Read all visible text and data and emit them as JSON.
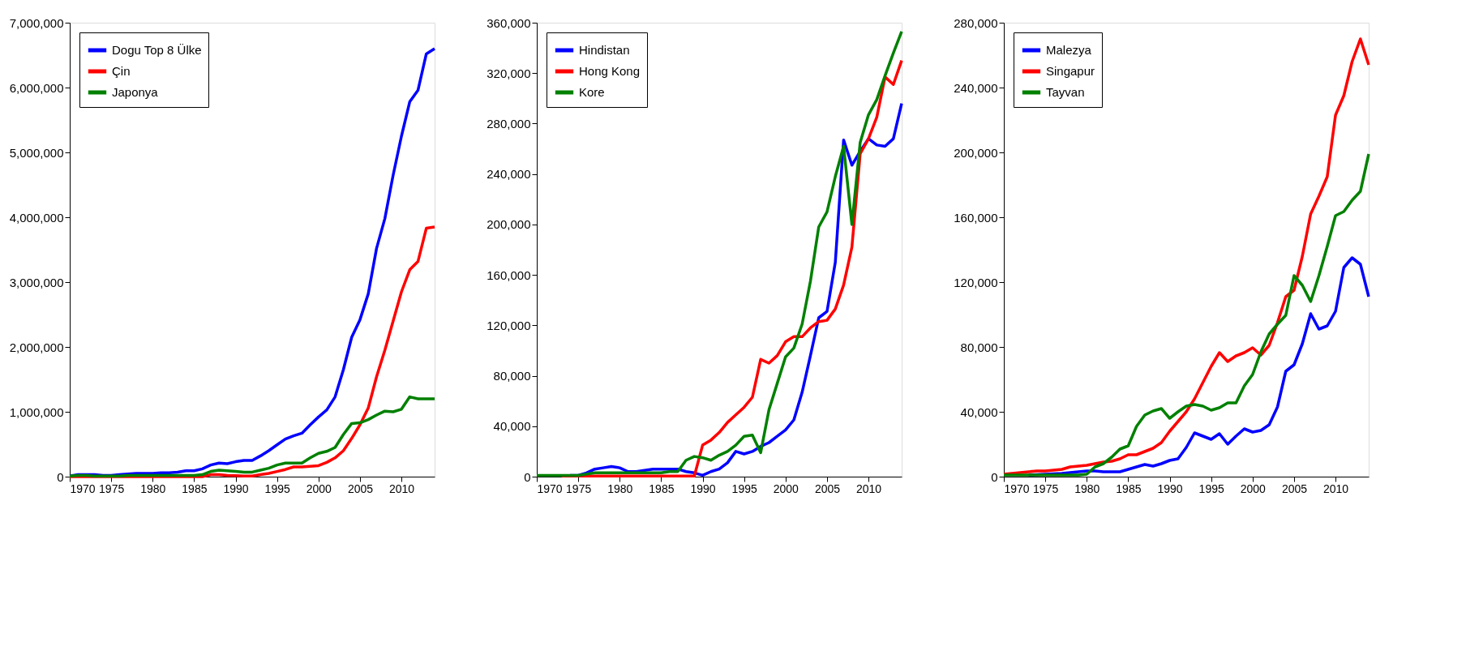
{
  "chart_data": [
    {
      "type": "line",
      "x": [
        1970,
        1971,
        1972,
        1973,
        1974,
        1975,
        1976,
        1977,
        1978,
        1979,
        1980,
        1981,
        1982,
        1983,
        1984,
        1985,
        1986,
        1987,
        1988,
        1989,
        1990,
        1991,
        1992,
        1993,
        1994,
        1995,
        1996,
        1997,
        1998,
        1999,
        2000,
        2001,
        2002,
        2003,
        2004,
        2005,
        2006,
        2007,
        2008,
        2009,
        2010,
        2011,
        2012,
        2013,
        2014
      ],
      "xlim": [
        1970,
        2014
      ],
      "xticks": [
        1970,
        1975,
        1980,
        1985,
        1990,
        1995,
        2000,
        2005,
        2010
      ],
      "ylim": [
        0,
        7000000
      ],
      "yticks": [
        0,
        {
          "value": 1000000,
          "label": "1,000,000"
        },
        {
          "value": 2000000,
          "label": "2,000,000"
        },
        {
          "value": 3000000,
          "label": "3,000,000"
        },
        {
          "value": 4000000,
          "label": "4,000,000"
        },
        {
          "value": 5000000,
          "label": "5,000,000"
        },
        {
          "value": 6000000,
          "label": "6,000,000"
        },
        {
          "value": 7000000,
          "label": "7,000,000"
        }
      ],
      "grid": false,
      "legend": "top left",
      "marker": "none",
      "line_style": "solid",
      "series": [
        {
          "name": "Dogu Top 8 Ülke",
          "color": "#0000ff",
          "values": [
            10000,
            30000,
            30000,
            30000,
            20000,
            20000,
            30000,
            40000,
            50000,
            50000,
            50000,
            60000,
            60000,
            70000,
            90000,
            90000,
            120000,
            180000,
            210000,
            200000,
            230000,
            250000,
            250000,
            320000,
            400000,
            490000,
            580000,
            630000,
            670000,
            800000,
            920000,
            1030000,
            1230000,
            1650000,
            2150000,
            2420000,
            2820000,
            3520000,
            3980000,
            4650000,
            5250000,
            5780000,
            5960000,
            6520000,
            6600000
          ]
        },
        {
          "name": "Çin",
          "color": "#ff0000",
          "values": [
            0,
            0,
            0,
            0,
            0,
            0,
            0,
            0,
            0,
            0,
            0,
            0,
            0,
            0,
            0,
            0,
            0,
            30000,
            30000,
            20000,
            15000,
            10000,
            10000,
            30000,
            50000,
            80000,
            110000,
            150000,
            150000,
            160000,
            170000,
            220000,
            290000,
            400000,
            590000,
            800000,
            1060000,
            1540000,
            1950000,
            2400000,
            2850000,
            3190000,
            3320000,
            3830000,
            3850000
          ]
        },
        {
          "name": "Japonya",
          "color": "#008000",
          "values": [
            10000,
            20000,
            20000,
            10000,
            10000,
            10000,
            10000,
            20000,
            20000,
            20000,
            20000,
            20000,
            20000,
            20000,
            20000,
            20000,
            30000,
            80000,
            100000,
            90000,
            80000,
            70000,
            70000,
            100000,
            130000,
            180000,
            210000,
            210000,
            210000,
            290000,
            360000,
            390000,
            450000,
            650000,
            820000,
            830000,
            880000,
            950000,
            1010000,
            1000000,
            1040000,
            1230000,
            1200000,
            1200000,
            1200000
          ]
        }
      ]
    },
    {
      "type": "line",
      "x": [
        1970,
        1971,
        1972,
        1973,
        1974,
        1975,
        1976,
        1977,
        1978,
        1979,
        1980,
        1981,
        1982,
        1983,
        1984,
        1985,
        1986,
        1987,
        1988,
        1989,
        1990,
        1991,
        1992,
        1993,
        1994,
        1995,
        1996,
        1997,
        1998,
        1999,
        2000,
        2001,
        2002,
        2003,
        2004,
        2005,
        2006,
        2007,
        2008,
        2009,
        2010,
        2011,
        2012,
        2013,
        2014
      ],
      "xlim": [
        1970,
        2014
      ],
      "xticks": [
        1970,
        1975,
        1980,
        1985,
        1990,
        1995,
        2000,
        2005,
        2010
      ],
      "ylim": [
        0,
        360000
      ],
      "yticks": [
        0,
        {
          "value": 40000,
          "label": "40,000"
        },
        {
          "value": 80000,
          "label": "80,000"
        },
        {
          "value": 120000,
          "label": "120,000"
        },
        {
          "value": 160000,
          "label": "160,000"
        },
        {
          "value": 200000,
          "label": "200,000"
        },
        {
          "value": 240000,
          "label": "240,000"
        },
        {
          "value": 280000,
          "label": "280,000"
        },
        {
          "value": 320000,
          "label": "320,000"
        },
        {
          "value": 360000,
          "label": "360,000"
        }
      ],
      "grid": false,
      "legend": "top left",
      "marker": "none",
      "line_style": "solid",
      "series": [
        {
          "name": "Hindistan",
          "color": "#0000ff",
          "values": [
            null,
            null,
            null,
            null,
            1000,
            1000,
            3000,
            6000,
            7000,
            8000,
            7000,
            4000,
            4000,
            5000,
            6000,
            6000,
            6000,
            6000,
            4000,
            3000,
            1000,
            4000,
            6000,
            11000,
            20000,
            18000,
            20000,
            24000,
            27000,
            32000,
            37000,
            45000,
            67000,
            96000,
            126000,
            131000,
            170000,
            267000,
            247000,
            258000,
            268000,
            263000,
            262000,
            268000,
            296000
          ]
        },
        {
          "name": "Hong Kong",
          "color": "#ff0000",
          "values": [
            null,
            null,
            null,
            500,
            500,
            500,
            500,
            500,
            500,
            500,
            500,
            500,
            500,
            500,
            500,
            500,
            500,
            500,
            500,
            500,
            25000,
            29000,
            35000,
            43000,
            49000,
            55000,
            63000,
            93000,
            90000,
            96000,
            107000,
            111000,
            111000,
            118000,
            123000,
            124000,
            133000,
            152000,
            182000,
            256000,
            268000,
            285000,
            317000,
            311000,
            330000
          ]
        },
        {
          "name": "Kore",
          "color": "#008000",
          "values": [
            1000,
            1000,
            1000,
            1000,
            1000,
            1000,
            2000,
            3000,
            3000,
            3000,
            3000,
            3000,
            3000,
            3000,
            3000,
            3000,
            4000,
            4000,
            13000,
            16000,
            15000,
            13000,
            17000,
            20000,
            25000,
            32000,
            33000,
            19000,
            53000,
            74000,
            95000,
            102000,
            121000,
            155000,
            198000,
            210000,
            238000,
            262000,
            200000,
            265000,
            287000,
            299000,
            318000,
            336000,
            353000
          ]
        }
      ]
    },
    {
      "type": "line",
      "x": [
        1970,
        1971,
        1972,
        1973,
        1974,
        1975,
        1976,
        1977,
        1978,
        1979,
        1980,
        1981,
        1982,
        1983,
        1984,
        1985,
        1986,
        1987,
        1988,
        1989,
        1990,
        1991,
        1992,
        1993,
        1994,
        1995,
        1996,
        1997,
        1998,
        1999,
        2000,
        2001,
        2002,
        2003,
        2004,
        2005,
        2006,
        2007,
        2008,
        2009,
        2010,
        2011,
        2012,
        2013,
        2014
      ],
      "xlim": [
        1970,
        2014
      ],
      "xticks": [
        1970,
        1975,
        1980,
        1985,
        1990,
        1995,
        2000,
        2005,
        2010
      ],
      "ylim": [
        0,
        280000
      ],
      "yticks": [
        0,
        {
          "value": 40000,
          "label": "40,000"
        },
        {
          "value": 80000,
          "label": "80,000"
        },
        {
          "value": 120000,
          "label": "120,000"
        },
        {
          "value": 160000,
          "label": "160,000"
        },
        {
          "value": 200000,
          "label": "200,000"
        },
        {
          "value": 240000,
          "label": "240,000"
        },
        {
          "value": 280000,
          "label": "280,000"
        }
      ],
      "grid": false,
      "legend": "top left",
      "marker": "none",
      "line_style": "solid",
      "series": [
        {
          "name": "Malezya",
          "color": "#0000ff",
          "values": [
            null,
            null,
            null,
            1000,
            1200,
            1500,
            1800,
            2000,
            2500,
            3000,
            3500,
            3500,
            3000,
            3000,
            3000,
            4500,
            6000,
            7500,
            6500,
            8000,
            10000,
            11000,
            18000,
            27000,
            25000,
            23000,
            26500,
            20000,
            25000,
            29500,
            27500,
            28500,
            32000,
            43000,
            65000,
            69000,
            82000,
            100500,
            91000,
            93000,
            102000,
            129000,
            135000,
            131000,
            111000
          ]
        },
        {
          "name": "Singapur",
          "color": "#ff0000",
          "values": [
            1500,
            2000,
            2500,
            3000,
            3500,
            3500,
            4000,
            4500,
            6000,
            6500,
            7000,
            8000,
            9000,
            9500,
            11000,
            13500,
            13500,
            15500,
            17500,
            21000,
            28000,
            34000,
            40000,
            48000,
            58000,
            68000,
            76500,
            71000,
            74500,
            76500,
            79500,
            75000,
            81000,
            95000,
            111000,
            115000,
            136000,
            162000,
            173000,
            185000,
            223000,
            235000,
            256000,
            270000,
            254000
          ]
        },
        {
          "name": "Tayvan",
          "color": "#008000",
          "values": [
            1000,
            1000,
            1000,
            1000,
            1000,
            1000,
            1000,
            1000,
            1000,
            1000,
            1500,
            6000,
            8000,
            12000,
            17000,
            19000,
            31000,
            38000,
            40500,
            42000,
            36000,
            40000,
            43500,
            44500,
            43500,
            41000,
            42500,
            45500,
            45500,
            56000,
            63000,
            77000,
            88000,
            94000,
            99500,
            124000,
            118000,
            108000,
            124000,
            142000,
            161000,
            163500,
            170500,
            176000,
            199000
          ]
        }
      ]
    }
  ]
}
